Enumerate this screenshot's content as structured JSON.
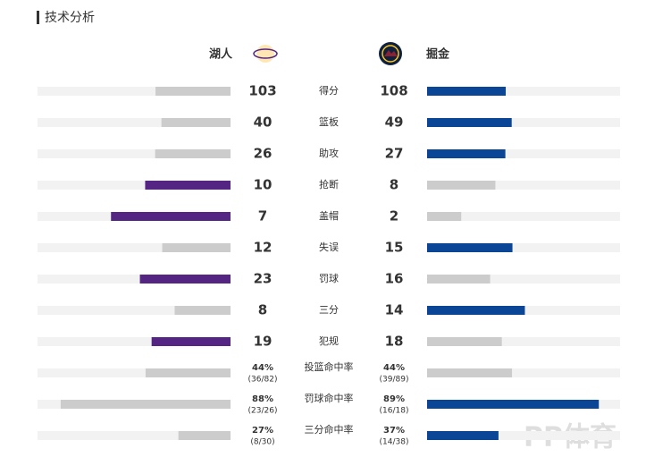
{
  "header": {
    "title": "技术分析"
  },
  "teams": {
    "home": "湖人",
    "away": "掘金"
  },
  "colors": {
    "home": "#552583",
    "away": "#0b4595",
    "neutral": "#cccccc",
    "track": "#f2f2f2"
  },
  "rows": [
    {
      "label": "得分",
      "home": {
        "value": 103
      },
      "away": {
        "value": 108
      }
    },
    {
      "label": "篮板",
      "home": {
        "value": 40
      },
      "away": {
        "value": 49
      }
    },
    {
      "label": "助攻",
      "home": {
        "value": 26
      },
      "away": {
        "value": 27
      }
    },
    {
      "label": "抢断",
      "home": {
        "value": 10
      },
      "away": {
        "value": 8
      }
    },
    {
      "label": "盖帽",
      "home": {
        "value": 7
      },
      "away": {
        "value": 2
      }
    },
    {
      "label": "失误",
      "home": {
        "value": 12
      },
      "away": {
        "value": 15
      }
    },
    {
      "label": "罚球",
      "home": {
        "value": 23
      },
      "away": {
        "value": 16
      }
    },
    {
      "label": "三分",
      "home": {
        "value": 8
      },
      "away": {
        "value": 14
      }
    },
    {
      "label": "犯规",
      "home": {
        "value": 19
      },
      "away": {
        "value": 18
      }
    },
    {
      "label": "投篮命中率",
      "percent": true,
      "home": {
        "value": 44,
        "label": "44%",
        "detail": "(36/82)"
      },
      "away": {
        "value": 44,
        "label": "44%",
        "detail": "(39/89)"
      }
    },
    {
      "label": "罚球命中率",
      "percent": true,
      "home": {
        "value": 88,
        "label": "88%",
        "detail": "(23/26)"
      },
      "away": {
        "value": 89,
        "label": "89%",
        "detail": "(16/18)"
      }
    },
    {
      "label": "三分命中率",
      "percent": true,
      "home": {
        "value": 27,
        "label": "27%",
        "detail": "(8/30)"
      },
      "away": {
        "value": 37,
        "label": "37%",
        "detail": "(14/38)"
      }
    }
  ],
  "watermark": "PP体育"
}
